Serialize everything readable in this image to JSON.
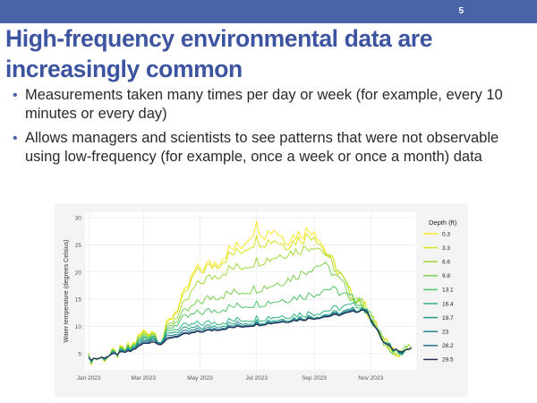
{
  "slide": {
    "number": "5",
    "title": "High-frequency environmental data are increasingly common",
    "bullets": [
      "Measurements taken many times per day or week (for example, every 10 minutes or every day)",
      "Allows managers and scientists to see patterns that were not observable using low-frequency (for example, once a week or once a month) data"
    ]
  },
  "chart_data": {
    "type": "line",
    "title": "",
    "xlabel": "",
    "ylabel": "Water temperature (degrees Celsius)",
    "xlim": [
      "2022-12-28",
      "2023-12-20"
    ],
    "ylim": [
      2,
      31
    ],
    "x_ticks": [
      "Jan 2023",
      "Mar 2023",
      "May 2023",
      "Jul 2023",
      "Sep 2023",
      "Nov 2023"
    ],
    "y_ticks": [
      5,
      10,
      15,
      20,
      25,
      30
    ],
    "grid": true,
    "legend": {
      "title": "Depth (ft)",
      "position": "right"
    },
    "series": [
      {
        "name": "0.3",
        "color": "#fde725",
        "points": [
          [
            "2023-01-01",
            4
          ],
          [
            "2023-01-15",
            4.2
          ],
          [
            "2023-02-01",
            5
          ],
          [
            "2023-02-15",
            6.2
          ],
          [
            "2023-03-01",
            9
          ],
          [
            "2023-03-10",
            9.5
          ],
          [
            "2023-03-20",
            7.5
          ],
          [
            "2023-04-01",
            12
          ],
          [
            "2023-04-15",
            16
          ],
          [
            "2023-04-25",
            20
          ],
          [
            "2023-05-05",
            21
          ],
          [
            "2023-05-20",
            22
          ],
          [
            "2023-06-01",
            24
          ],
          [
            "2023-06-15",
            25
          ],
          [
            "2023-07-01",
            28.5
          ],
          [
            "2023-07-10",
            27
          ],
          [
            "2023-07-20",
            28
          ],
          [
            "2023-08-01",
            26
          ],
          [
            "2023-08-15",
            27
          ],
          [
            "2023-09-01",
            28
          ],
          [
            "2023-09-10",
            25
          ],
          [
            "2023-09-20",
            22
          ],
          [
            "2023-10-01",
            19
          ],
          [
            "2023-10-10",
            16
          ],
          [
            "2023-10-20",
            15
          ],
          [
            "2023-11-01",
            12
          ],
          [
            "2023-11-15",
            7
          ],
          [
            "2023-11-25",
            5.8
          ],
          [
            "2023-12-05",
            5.5
          ],
          [
            "2023-12-15",
            6
          ]
        ]
      },
      {
        "name": "3.3",
        "color": "#d8e219",
        "points": [
          [
            "2023-01-01",
            4
          ],
          [
            "2023-01-15",
            4.2
          ],
          [
            "2023-02-01",
            5
          ],
          [
            "2023-02-15",
            6
          ],
          [
            "2023-03-01",
            8.8
          ],
          [
            "2023-03-10",
            9.3
          ],
          [
            "2023-03-20",
            7.5
          ],
          [
            "2023-04-01",
            11.8
          ],
          [
            "2023-04-15",
            15.5
          ],
          [
            "2023-04-25",
            19.5
          ],
          [
            "2023-05-05",
            20.5
          ],
          [
            "2023-05-20",
            21.5
          ],
          [
            "2023-06-01",
            23
          ],
          [
            "2023-06-15",
            24
          ],
          [
            "2023-07-01",
            26
          ],
          [
            "2023-07-10",
            25.5
          ],
          [
            "2023-07-20",
            26
          ],
          [
            "2023-08-01",
            25
          ],
          [
            "2023-08-15",
            26
          ],
          [
            "2023-09-01",
            27
          ],
          [
            "2023-09-10",
            24.5
          ],
          [
            "2023-09-20",
            22
          ],
          [
            "2023-10-01",
            19
          ],
          [
            "2023-10-10",
            16
          ],
          [
            "2023-10-20",
            15
          ],
          [
            "2023-11-01",
            12
          ],
          [
            "2023-11-15",
            7
          ],
          [
            "2023-11-25",
            5.8
          ],
          [
            "2023-12-05",
            5.5
          ],
          [
            "2023-12-15",
            6
          ]
        ]
      },
      {
        "name": "6.6",
        "color": "#a0da39",
        "points": [
          [
            "2023-01-01",
            4
          ],
          [
            "2023-01-15",
            4.2
          ],
          [
            "2023-02-01",
            5
          ],
          [
            "2023-02-15",
            6
          ],
          [
            "2023-03-01",
            8.5
          ],
          [
            "2023-03-10",
            9
          ],
          [
            "2023-03-20",
            7.5
          ],
          [
            "2023-04-01",
            11
          ],
          [
            "2023-04-15",
            14
          ],
          [
            "2023-04-25",
            17
          ],
          [
            "2023-05-05",
            18.5
          ],
          [
            "2023-05-20",
            19.5
          ],
          [
            "2023-06-01",
            20.5
          ],
          [
            "2023-06-15",
            21
          ],
          [
            "2023-07-01",
            22
          ],
          [
            "2023-07-15",
            22.5
          ],
          [
            "2023-08-01",
            23.5
          ],
          [
            "2023-08-15",
            24
          ],
          [
            "2023-09-01",
            25
          ],
          [
            "2023-09-10",
            24
          ],
          [
            "2023-09-20",
            21.5
          ],
          [
            "2023-10-01",
            19
          ],
          [
            "2023-10-10",
            16
          ],
          [
            "2023-10-20",
            15
          ],
          [
            "2023-11-01",
            12
          ],
          [
            "2023-11-15",
            7
          ],
          [
            "2023-11-25",
            5.8
          ],
          [
            "2023-12-05",
            5.5
          ],
          [
            "2023-12-15",
            6
          ]
        ]
      },
      {
        "name": "9.8",
        "color": "#7ad151",
        "points": [
          [
            "2023-01-01",
            4
          ],
          [
            "2023-01-15",
            4.2
          ],
          [
            "2023-02-01",
            5
          ],
          [
            "2023-02-15",
            6
          ],
          [
            "2023-03-01",
            8.3
          ],
          [
            "2023-03-10",
            8.8
          ],
          [
            "2023-03-20",
            7.5
          ],
          [
            "2023-04-01",
            10.5
          ],
          [
            "2023-04-15",
            12.5
          ],
          [
            "2023-05-01",
            14.5
          ],
          [
            "2023-05-15",
            15.5
          ],
          [
            "2023-06-01",
            16
          ],
          [
            "2023-06-15",
            16.5
          ],
          [
            "2023-07-01",
            17
          ],
          [
            "2023-07-15",
            17.5
          ],
          [
            "2023-08-01",
            18.5
          ],
          [
            "2023-08-15",
            19.5
          ],
          [
            "2023-09-01",
            21
          ],
          [
            "2023-09-10",
            21.5
          ],
          [
            "2023-09-20",
            20
          ],
          [
            "2023-10-01",
            18
          ],
          [
            "2023-10-10",
            15.5
          ],
          [
            "2023-10-20",
            14.5
          ],
          [
            "2023-11-01",
            12
          ],
          [
            "2023-11-15",
            7
          ],
          [
            "2023-11-25",
            5.8
          ],
          [
            "2023-12-05",
            5.5
          ],
          [
            "2023-12-15",
            6
          ]
        ]
      },
      {
        "name": "13.1",
        "color": "#52c569",
        "points": [
          [
            "2023-01-01",
            4
          ],
          [
            "2023-01-15",
            4.2
          ],
          [
            "2023-02-01",
            5
          ],
          [
            "2023-02-15",
            5.8
          ],
          [
            "2023-03-01",
            8
          ],
          [
            "2023-03-10",
            8.5
          ],
          [
            "2023-03-20",
            7.5
          ],
          [
            "2023-04-01",
            10
          ],
          [
            "2023-04-15",
            11.5
          ],
          [
            "2023-05-01",
            12.5
          ],
          [
            "2023-06-01",
            13.5
          ],
          [
            "2023-07-01",
            14.2
          ],
          [
            "2023-08-01",
            15
          ],
          [
            "2023-09-01",
            16
          ],
          [
            "2023-09-15",
            17
          ],
          [
            "2023-09-25",
            16.5
          ],
          [
            "2023-10-01",
            16
          ],
          [
            "2023-10-15",
            15
          ],
          [
            "2023-10-25",
            13.5
          ],
          [
            "2023-11-01",
            11.5
          ],
          [
            "2023-11-15",
            7
          ],
          [
            "2023-11-25",
            5.8
          ],
          [
            "2023-12-05",
            5.5
          ],
          [
            "2023-12-15",
            6
          ]
        ]
      },
      {
        "name": "16.4",
        "color": "#2fb47c",
        "points": [
          [
            "2023-01-01",
            4
          ],
          [
            "2023-01-15",
            4.2
          ],
          [
            "2023-02-01",
            5
          ],
          [
            "2023-02-15",
            5.8
          ],
          [
            "2023-03-01",
            7.8
          ],
          [
            "2023-03-10",
            8.3
          ],
          [
            "2023-03-20",
            7.5
          ],
          [
            "2023-04-01",
            9.5
          ],
          [
            "2023-05-01",
            10.5
          ],
          [
            "2023-06-01",
            11
          ],
          [
            "2023-07-01",
            11.5
          ],
          [
            "2023-08-01",
            12
          ],
          [
            "2023-09-01",
            12.5
          ],
          [
            "2023-10-01",
            13.5
          ],
          [
            "2023-10-20",
            14
          ],
          [
            "2023-11-01",
            11.5
          ],
          [
            "2023-11-15",
            7
          ],
          [
            "2023-11-25",
            5.8
          ],
          [
            "2023-12-05",
            5.5
          ],
          [
            "2023-12-15",
            6
          ]
        ]
      },
      {
        "name": "19.7",
        "color": "#1f9e89",
        "points": [
          [
            "2023-01-01",
            4
          ],
          [
            "2023-01-15",
            4.2
          ],
          [
            "2023-02-01",
            5
          ],
          [
            "2023-02-15",
            5.6
          ],
          [
            "2023-03-01",
            7.5
          ],
          [
            "2023-03-10",
            8
          ],
          [
            "2023-03-20",
            7.3
          ],
          [
            "2023-04-01",
            9
          ],
          [
            "2023-05-01",
            9.8
          ],
          [
            "2023-06-01",
            10.4
          ],
          [
            "2023-07-01",
            10.9
          ],
          [
            "2023-08-01",
            11.4
          ],
          [
            "2023-09-01",
            11.9
          ],
          [
            "2023-10-01",
            12.6
          ],
          [
            "2023-10-25",
            13.5
          ],
          [
            "2023-11-01",
            11.5
          ],
          [
            "2023-11-15",
            7
          ],
          [
            "2023-11-25",
            5.8
          ],
          [
            "2023-12-05",
            5.5
          ],
          [
            "2023-12-15",
            6
          ]
        ]
      },
      {
        "name": "23",
        "color": "#25838e",
        "points": [
          [
            "2023-01-01",
            4
          ],
          [
            "2023-01-15",
            4.2
          ],
          [
            "2023-02-01",
            5
          ],
          [
            "2023-02-15",
            5.5
          ],
          [
            "2023-03-01",
            7.2
          ],
          [
            "2023-03-10",
            7.8
          ],
          [
            "2023-03-20",
            7.2
          ],
          [
            "2023-04-01",
            8.5
          ],
          [
            "2023-05-01",
            9.4
          ],
          [
            "2023-06-01",
            10
          ],
          [
            "2023-07-01",
            10.6
          ],
          [
            "2023-08-01",
            11.1
          ],
          [
            "2023-09-01",
            11.7
          ],
          [
            "2023-10-01",
            12.4
          ],
          [
            "2023-10-25",
            13.3
          ],
          [
            "2023-11-01",
            11.5
          ],
          [
            "2023-11-15",
            7
          ],
          [
            "2023-11-25",
            5.8
          ],
          [
            "2023-12-05",
            5.5
          ],
          [
            "2023-12-15",
            6
          ]
        ]
      },
      {
        "name": "26.2",
        "color": "#2d708e",
        "points": [
          [
            "2023-01-01",
            4
          ],
          [
            "2023-01-15",
            4.2
          ],
          [
            "2023-02-01",
            5
          ],
          [
            "2023-02-15",
            5.5
          ],
          [
            "2023-03-01",
            7
          ],
          [
            "2023-03-10",
            7.5
          ],
          [
            "2023-03-20",
            7
          ],
          [
            "2023-04-01",
            8.2
          ],
          [
            "2023-05-01",
            9.1
          ],
          [
            "2023-06-01",
            9.8
          ],
          [
            "2023-07-01",
            10.4
          ],
          [
            "2023-08-01",
            11
          ],
          [
            "2023-09-01",
            11.6
          ],
          [
            "2023-10-01",
            12.3
          ],
          [
            "2023-10-25",
            13.2
          ],
          [
            "2023-11-01",
            11.5
          ],
          [
            "2023-11-15",
            7
          ],
          [
            "2023-11-25",
            5.8
          ],
          [
            "2023-12-05",
            5.5
          ],
          [
            "2023-12-15",
            6
          ]
        ]
      },
      {
        "name": "29.5",
        "color": "#26335c",
        "points": [
          [
            "2023-01-01",
            4
          ],
          [
            "2023-01-15",
            4.2
          ],
          [
            "2023-02-01",
            5
          ],
          [
            "2023-02-15",
            5.4
          ],
          [
            "2023-03-01",
            6.8
          ],
          [
            "2023-03-10",
            7.2
          ],
          [
            "2023-03-20",
            6.8
          ],
          [
            "2023-04-01",
            8
          ],
          [
            "2023-05-01",
            9
          ],
          [
            "2023-06-01",
            9.7
          ],
          [
            "2023-07-01",
            10.3
          ],
          [
            "2023-08-01",
            10.9
          ],
          [
            "2023-09-01",
            11.5
          ],
          [
            "2023-10-01",
            12.2
          ],
          [
            "2023-10-25",
            13.1
          ],
          [
            "2023-11-01",
            11.5
          ],
          [
            "2023-11-15",
            7
          ],
          [
            "2023-11-25",
            5.8
          ],
          [
            "2023-12-05",
            5.5
          ],
          [
            "2023-12-15",
            6
          ]
        ]
      }
    ]
  }
}
